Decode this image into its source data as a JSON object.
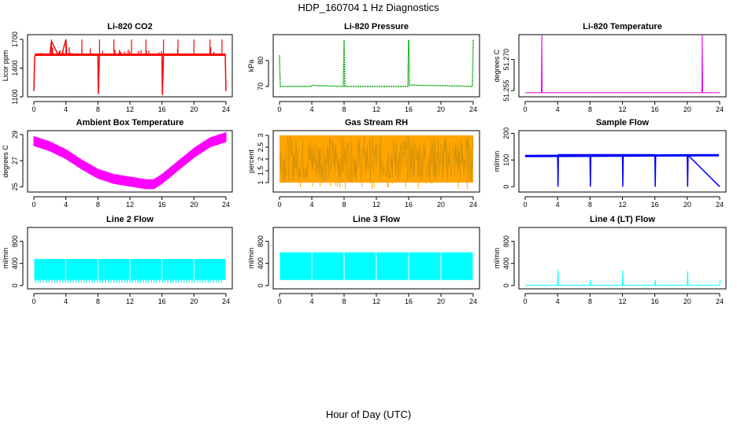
{
  "figure": {
    "title": "HDP_160704  1 Hz Diagnostics",
    "xlabel": "Hour of Day (UTC)"
  },
  "chart_data": [
    {
      "type": "line",
      "title": "Li-820 CO2",
      "ylabel": "Licor ppm",
      "xlim": [
        0,
        24
      ],
      "ylim": [
        1100,
        1750
      ],
      "xticks": [
        0,
        4,
        8,
        12,
        16,
        20,
        24
      ],
      "yticks": [
        1100,
        1400,
        1700
      ],
      "color": "#ff0000",
      "baseline": 1540,
      "series": [
        {
          "x": [
            0,
            0.1,
            0.3,
            1.0,
            1.5,
            2.0,
            2.2,
            3.0,
            3.5,
            4.0,
            4.1,
            5.0,
            6.0,
            7.0,
            8.0,
            8.05,
            8.2,
            9.0,
            10.0,
            11.0,
            12.0,
            13.0,
            14.0,
            15.0,
            16.0,
            16.05,
            16.2,
            17.0,
            18.0,
            19.0,
            20.0,
            21.0,
            22.0,
            23.0,
            23.5,
            23.9,
            24.0
          ],
          "y": [
            1160,
            1520,
            1545,
            1550,
            1540,
            1545,
            1680,
            1545,
            1540,
            1700,
            1545,
            1545,
            1545,
            1545,
            1545,
            1130,
            1545,
            1545,
            1545,
            1545,
            1545,
            1545,
            1545,
            1545,
            1545,
            1120,
            1545,
            1545,
            1545,
            1545,
            1545,
            1545,
            1545,
            1545,
            1540,
            1545,
            1160
          ]
        }
      ],
      "spikes_up": [
        2.2,
        4.0,
        6.0,
        8.2,
        10.0,
        12.2,
        14.0,
        16.2,
        18.0,
        20.0,
        22.0,
        23.5
      ]
    },
    {
      "type": "line",
      "title": "Li-820 Pressure",
      "ylabel": "kPa",
      "xlim": [
        0,
        24
      ],
      "ylim": [
        66,
        90
      ],
      "xticks": [
        0,
        4,
        8,
        12,
        16,
        20,
        24
      ],
      "yticks": [
        70,
        80
      ],
      "color": "#00aa00",
      "series": [
        {
          "x": [
            0,
            0.05,
            0.1,
            0.3,
            3.9,
            4.0,
            4.5,
            6.0,
            7.9,
            8.0,
            8.1,
            12.0,
            15.9,
            16.0,
            16.1,
            16.3,
            20.0,
            23.9,
            24.0
          ],
          "y": [
            82,
            75,
            70,
            70,
            70,
            70.5,
            70.3,
            70.2,
            70,
            88,
            70,
            70,
            70,
            88,
            70.5,
            70.5,
            70.3,
            70,
            88
          ]
        }
      ]
    },
    {
      "type": "line",
      "title": "Li-820 Temperature",
      "ylabel": "degrees C",
      "xlim": [
        0,
        24
      ],
      "ylim": [
        51.252,
        51.282
      ],
      "xticks": [
        0,
        4,
        8,
        12,
        16,
        20,
        24
      ],
      "yticks": [
        51.255,
        51.27
      ],
      "color": "#dd00dd",
      "baseline": 51.254,
      "series": [
        {
          "x": [
            0,
            2.0,
            2.05,
            2.1,
            21.8,
            21.85,
            21.9,
            24.0
          ],
          "y": [
            51.254,
            51.254,
            51.282,
            51.254,
            51.254,
            51.282,
            51.254,
            51.254
          ]
        }
      ]
    },
    {
      "type": "area",
      "title": "Ambient Box Temperature",
      "ylabel": "degrees C",
      "xlim": [
        0,
        24
      ],
      "ylim": [
        24.6,
        29.3
      ],
      "xticks": [
        0,
        4,
        8,
        12,
        16,
        20,
        24
      ],
      "yticks": [
        25,
        27,
        29
      ],
      "color": "#ff00ff",
      "series": [
        {
          "x": [
            0,
            2,
            4,
            6,
            8,
            10,
            12,
            14,
            15,
            16,
            18,
            20,
            22,
            24
          ],
          "y": [
            28.5,
            28.1,
            27.5,
            26.7,
            26.0,
            25.6,
            25.4,
            25.2,
            25.2,
            25.6,
            26.6,
            27.6,
            28.4,
            28.8
          ],
          "band": 0.35
        }
      ]
    },
    {
      "type": "area",
      "title": "Gas Stream RH",
      "ylabel": "percent",
      "xlim": [
        0,
        24
      ],
      "ylim": [
        0.6,
        3.2
      ],
      "xticks": [
        0,
        4,
        8,
        12,
        16,
        20,
        24
      ],
      "yticks": [
        1.0,
        1.5,
        2.0,
        2.5,
        3.0
      ],
      "color": "#ff8c00",
      "series": [
        {
          "x": [
            0,
            24
          ],
          "y_low": [
            1.0,
            1.0
          ],
          "y_high": [
            3.0,
            3.0
          ]
        }
      ]
    },
    {
      "type": "line",
      "title": "Sample Flow",
      "ylabel": "ml/min",
      "xlim": [
        0,
        24
      ],
      "ylim": [
        -20,
        210
      ],
      "xticks": [
        0,
        4,
        8,
        12,
        16,
        20,
        24
      ],
      "yticks": [
        0,
        100,
        200
      ],
      "color": "#0000ff",
      "baseline": 115,
      "series": [
        {
          "x": [
            0,
            4.0,
            4.05,
            4.1,
            8.0,
            8.05,
            8.1,
            12.0,
            12.05,
            12.1,
            16.0,
            16.05,
            16.1,
            20.0,
            20.05,
            20.1,
            24.0
          ],
          "y": [
            115,
            115,
            0,
            120,
            120,
            0,
            120,
            120,
            0,
            120,
            120,
            0,
            118,
            118,
            0,
            118,
            0
          ]
        }
      ]
    },
    {
      "type": "area",
      "title": "Line 2 Flow",
      "ylabel": "ml/min",
      "xlim": [
        0,
        24
      ],
      "ylim": [
        -60,
        1050
      ],
      "xticks": [
        0,
        4,
        8,
        12,
        16,
        20,
        24
      ],
      "yticks": [
        0,
        400,
        800
      ],
      "color": "#00ffff",
      "series": [
        {
          "x": [
            0,
            24
          ],
          "y_low": [
            100,
            100
          ],
          "y_high": [
            480,
            480
          ],
          "dips_to": 50,
          "gaps": [
            4,
            8,
            12,
            16,
            20
          ]
        }
      ]
    },
    {
      "type": "area",
      "title": "Line 3 Flow",
      "ylabel": "ml/min",
      "xlim": [
        0,
        24
      ],
      "ylim": [
        -60,
        1050
      ],
      "xticks": [
        0,
        4,
        8,
        12,
        16,
        20,
        24
      ],
      "yticks": [
        0,
        400,
        800
      ],
      "color": "#00ffff",
      "series": [
        {
          "x": [
            0,
            24
          ],
          "y_low": [
            100,
            100
          ],
          "y_high": [
            600,
            600
          ],
          "gaps": [
            4,
            8,
            12,
            16,
            20
          ]
        }
      ]
    },
    {
      "type": "line",
      "title": "Line 4 (LT) Flow",
      "ylabel": "ml/min",
      "xlim": [
        0,
        24
      ],
      "ylim": [
        -60,
        1050
      ],
      "xticks": [
        0,
        4,
        8,
        12,
        16,
        20,
        24
      ],
      "yticks": [
        0,
        400,
        800
      ],
      "color": "#00ffff",
      "baseline": 5,
      "series": [
        {
          "x": [
            0,
            4.0,
            4.05,
            4.1,
            8.0,
            8.05,
            8.1,
            12.0,
            12.05,
            12.1,
            16.0,
            16.05,
            16.1,
            20.0,
            20.05,
            20.1,
            24.0,
            24.05
          ],
          "y": [
            5,
            5,
            280,
            5,
            5,
            100,
            5,
            5,
            280,
            5,
            5,
            100,
            5,
            5,
            260,
            5,
            5,
            100
          ]
        }
      ]
    }
  ]
}
